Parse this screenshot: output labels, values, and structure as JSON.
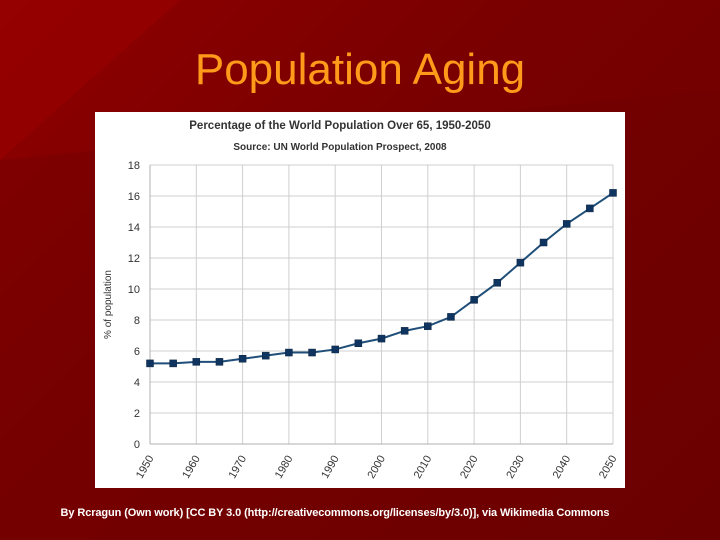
{
  "slide": {
    "title": "Population Aging",
    "credit": "By Rcragun (Own work) [CC BY 3.0 (http://creativecommons.org/licenses/by/3.0)], via Wikimedia Commons",
    "title_color": "#ff9a1a",
    "background_color": "#7a0000"
  },
  "chart_data": {
    "type": "line",
    "title": "Percentage of the World Population Over 65, 1950-2050",
    "subtitle": "Source: UN World Population Prospect, 2008",
    "xlabel": "",
    "ylabel": "% of population",
    "x": [
      1950,
      1955,
      1960,
      1965,
      1970,
      1975,
      1980,
      1985,
      1990,
      1995,
      2000,
      2005,
      2010,
      2015,
      2020,
      2025,
      2030,
      2035,
      2040,
      2045,
      2050
    ],
    "x_tick_labels": [
      "1950",
      "1960",
      "1970",
      "1980",
      "1990",
      "2000",
      "2010",
      "2020",
      "2030",
      "2040",
      "2050"
    ],
    "y_tick_labels": [
      "0",
      "2",
      "4",
      "6",
      "8",
      "10",
      "12",
      "14",
      "16",
      "18"
    ],
    "series": [
      {
        "name": "% over 65",
        "values": [
          5.2,
          5.2,
          5.3,
          5.3,
          5.5,
          5.7,
          5.9,
          5.9,
          6.1,
          6.5,
          6.8,
          7.3,
          7.6,
          8.2,
          9.3,
          10.4,
          11.7,
          13.0,
          14.2,
          15.2,
          16.2
        ],
        "color": "#1f4e79",
        "marker_color": "#0f3460"
      }
    ],
    "xlim": [
      1950,
      2050
    ],
    "ylim": [
      0,
      18
    ],
    "grid": true
  }
}
